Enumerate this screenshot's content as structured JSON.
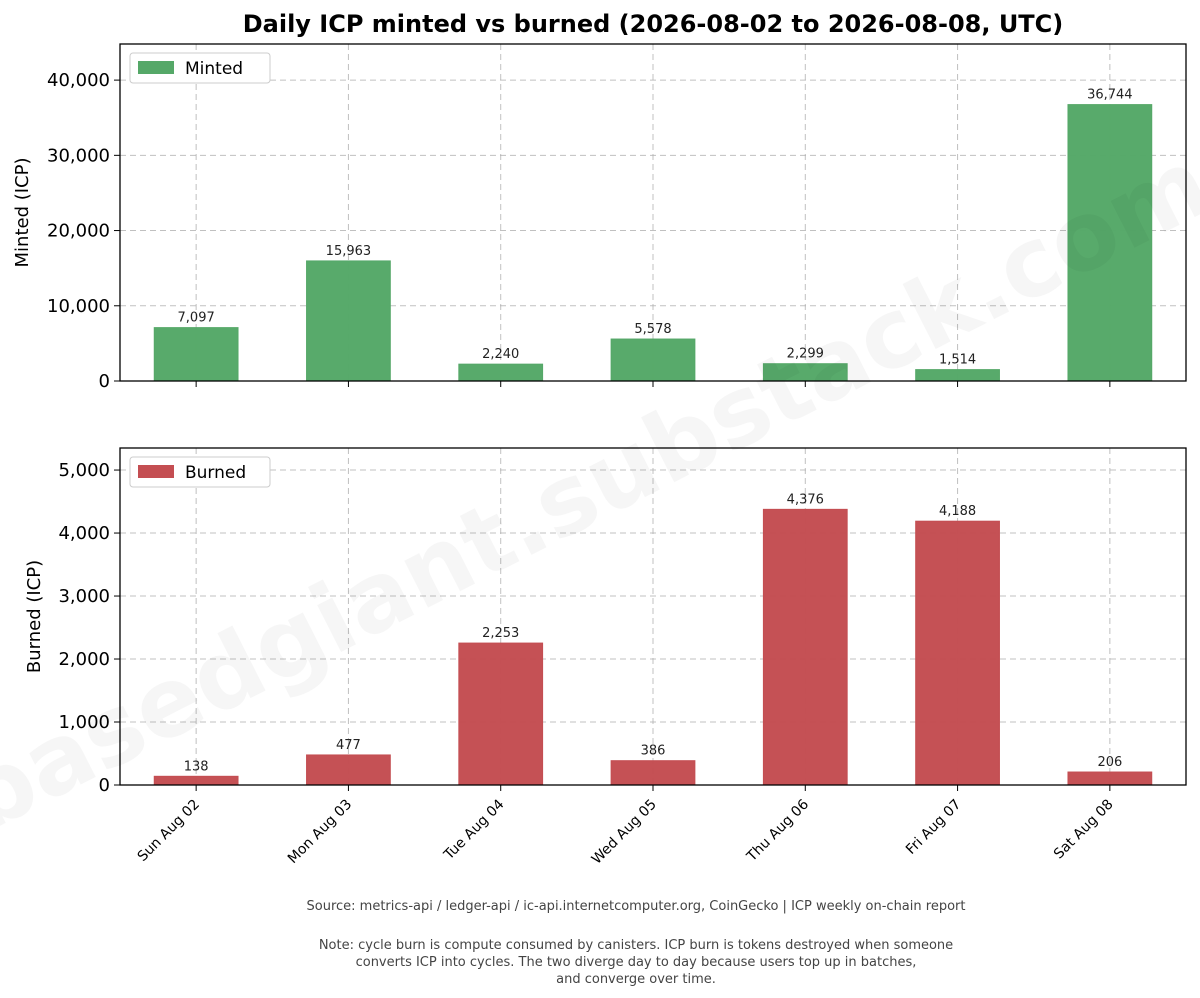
{
  "title": "Daily ICP minted vs burned  (2026-08-02 to 2026-08-08, UTC)",
  "watermark": "basedgiant.substack.com",
  "colors": {
    "minted": "#55a868",
    "burned": "#c44e52",
    "grid": "#b0b0b0"
  },
  "footer": {
    "source": "Source: metrics-api / ledger-api / ic-api.internetcomputer.org, CoinGecko  |  ICP weekly on-chain report",
    "note_lines": [
      "Note: cycle burn is compute consumed by canisters. ICP burn is tokens destroyed when someone",
      "converts ICP into cycles. The two diverge day to day because users top up in batches,",
      "and converge over time."
    ]
  },
  "chart_data": [
    {
      "type": "bar",
      "categories": [
        "Sun Aug 02",
        "Mon Aug 03",
        "Tue Aug 04",
        "Wed Aug 05",
        "Thu Aug 06",
        "Fri Aug 07",
        "Sat Aug 08"
      ],
      "series": [
        {
          "name": "Minted",
          "values": [
            7097,
            15963,
            2240,
            5578,
            2299,
            1514,
            36744
          ]
        }
      ],
      "data_labels": [
        "7,097",
        "15,963",
        "2,240",
        "5,578",
        "2,299",
        "1,514",
        "36,744"
      ],
      "ylabel": "Minted (ICP)",
      "ylim": [
        0,
        44800
      ],
      "yticks": [
        0,
        10000,
        20000,
        30000,
        40000
      ],
      "ytick_labels": [
        "0",
        "10,000",
        "20,000",
        "30,000",
        "40,000"
      ],
      "grid": true,
      "legend": "top-left",
      "color": "#55a868"
    },
    {
      "type": "bar",
      "categories": [
        "Sun Aug 02",
        "Mon Aug 03",
        "Tue Aug 04",
        "Wed Aug 05",
        "Thu Aug 06",
        "Fri Aug 07",
        "Sat Aug 08"
      ],
      "series": [
        {
          "name": "Burned",
          "values": [
            138,
            477,
            2253,
            386,
            4376,
            4188,
            206
          ]
        }
      ],
      "data_labels": [
        "138",
        "477",
        "2,253",
        "386",
        "4,376",
        "4,188",
        "206"
      ],
      "ylabel": "Burned (ICP)",
      "ylim": [
        0,
        5350
      ],
      "yticks": [
        0,
        1000,
        2000,
        3000,
        4000,
        5000
      ],
      "ytick_labels": [
        "0",
        "1,000",
        "2,000",
        "3,000",
        "4,000",
        "5,000"
      ],
      "xtick_labels": [
        "Sun Aug 02",
        "Mon Aug 03",
        "Tue Aug 04",
        "Wed Aug 05",
        "Thu Aug 06",
        "Fri Aug 07",
        "Sat Aug 08"
      ],
      "grid": true,
      "legend": "top-left",
      "color": "#c44e52"
    }
  ]
}
